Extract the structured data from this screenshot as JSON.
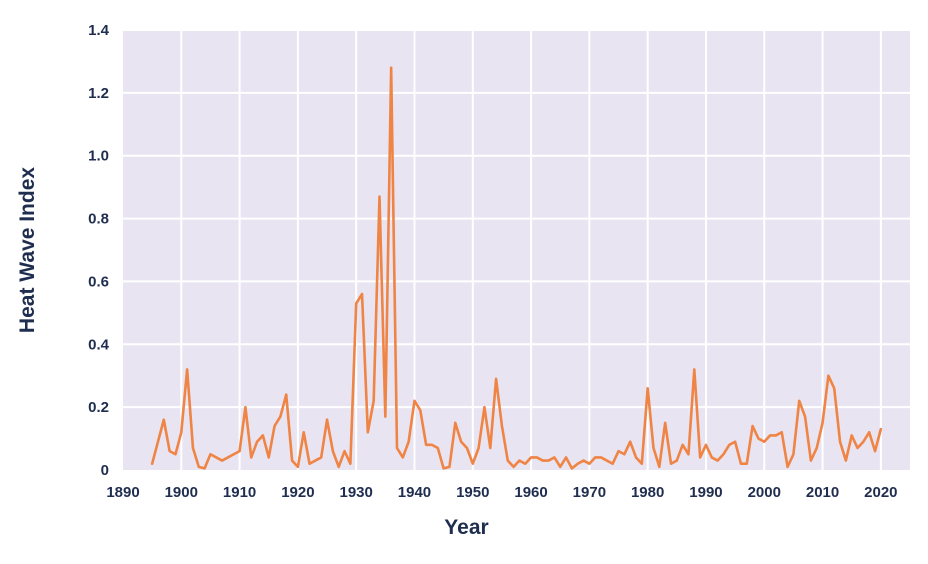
{
  "chart_data": {
    "type": "line",
    "title": "",
    "xlabel": "Year",
    "ylabel": "Heat Wave Index",
    "xlim": [
      1890,
      2025
    ],
    "ylim": [
      0,
      1.4
    ],
    "x_ticks": [
      "1890",
      "1900",
      "1910",
      "1920",
      "1930",
      "1940",
      "1950",
      "1960",
      "1970",
      "1980",
      "1990",
      "2000",
      "2010",
      "2020"
    ],
    "y_ticks": [
      "0",
      "0.2",
      "0.4",
      "0.6",
      "0.8",
      "1.0",
      "1.2",
      "1.4"
    ],
    "grid": true,
    "legend": "none",
    "colors": {
      "line": "#ef8445",
      "plot_bg": "#e8e4f1",
      "grid": "#ffffff",
      "text": "#1f2d4f"
    },
    "series": [
      {
        "x": [
          1895,
          1896,
          1897,
          1898,
          1899,
          1900,
          1901,
          1902,
          1903,
          1904,
          1905,
          1906,
          1907,
          1908,
          1909,
          1910,
          1911,
          1912,
          1913,
          1914,
          1915,
          1916,
          1917,
          1918,
          1919,
          1920,
          1921,
          1922,
          1923,
          1924,
          1925,
          1926,
          1927,
          1928,
          1929,
          1930,
          1931,
          1932,
          1933,
          1934,
          1935,
          1936,
          1937,
          1938,
          1939,
          1940,
          1941,
          1942,
          1943,
          1944,
          1945,
          1946,
          1947,
          1948,
          1949,
          1950,
          1951,
          1952,
          1953,
          1954,
          1955,
          1956,
          1957,
          1958,
          1959,
          1960,
          1961,
          1962,
          1963,
          1964,
          1965,
          1966,
          1967,
          1968,
          1969,
          1970,
          1971,
          1972,
          1973,
          1974,
          1975,
          1976,
          1977,
          1978,
          1979,
          1980,
          1981,
          1982,
          1983,
          1984,
          1985,
          1986,
          1987,
          1988,
          1989,
          1990,
          1991,
          1992,
          1993,
          1994,
          1995,
          1996,
          1997,
          1998,
          1999,
          2000,
          2001,
          2002,
          2003,
          2004,
          2005,
          2006,
          2007,
          2008,
          2009,
          2010,
          2011,
          2012,
          2013,
          2014,
          2015,
          2016,
          2017,
          2018,
          2019,
          2020
        ],
        "values": [
          0.02,
          0.09,
          0.16,
          0.06,
          0.05,
          0.12,
          0.32,
          0.07,
          0.01,
          0.005,
          0.05,
          0.04,
          0.03,
          0.04,
          0.05,
          0.06,
          0.2,
          0.04,
          0.09,
          0.11,
          0.04,
          0.14,
          0.17,
          0.24,
          0.03,
          0.01,
          0.12,
          0.02,
          0.03,
          0.04,
          0.16,
          0.06,
          0.01,
          0.06,
          0.02,
          0.53,
          0.56,
          0.12,
          0.22,
          0.87,
          0.17,
          1.28,
          0.07,
          0.04,
          0.09,
          0.22,
          0.19,
          0.08,
          0.08,
          0.07,
          0.005,
          0.01,
          0.15,
          0.09,
          0.07,
          0.02,
          0.07,
          0.2,
          0.07,
          0.29,
          0.14,
          0.03,
          0.01,
          0.03,
          0.02,
          0.04,
          0.04,
          0.03,
          0.03,
          0.04,
          0.01,
          0.04,
          0.005,
          0.02,
          0.03,
          0.02,
          0.04,
          0.04,
          0.03,
          0.02,
          0.06,
          0.05,
          0.09,
          0.04,
          0.02,
          0.26,
          0.07,
          0.01,
          0.15,
          0.02,
          0.03,
          0.08,
          0.05,
          0.32,
          0.04,
          0.08,
          0.04,
          0.03,
          0.05,
          0.08,
          0.09,
          0.02,
          0.02,
          0.14,
          0.1,
          0.09,
          0.11,
          0.11,
          0.12,
          0.01,
          0.05,
          0.22,
          0.17,
          0.03,
          0.07,
          0.15,
          0.3,
          0.26,
          0.09,
          0.03,
          0.11,
          0.07,
          0.09,
          0.12,
          0.06,
          0.13
        ]
      }
    ]
  }
}
